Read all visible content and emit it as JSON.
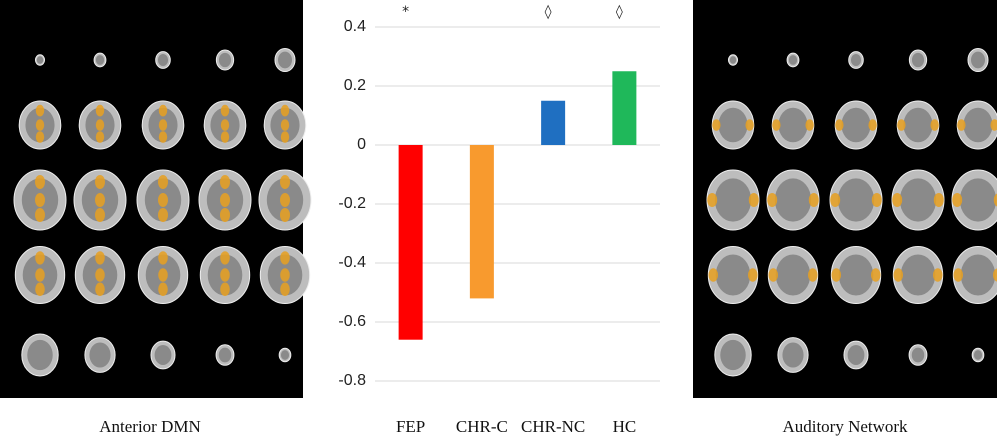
{
  "chart_data": {
    "type": "bar",
    "categories": [
      "FEP",
      "CHR-C",
      "CHR-NC",
      "HC"
    ],
    "values": [
      -0.66,
      -0.52,
      0.15,
      0.25
    ],
    "colors": [
      "#ff0000",
      "#f89a2e",
      "#1f6fc1",
      "#1fb85a"
    ],
    "annotations": [
      "*",
      null,
      "◊",
      "◊"
    ],
    "ylim": [
      -0.8,
      0.4
    ],
    "yticks": [
      -0.8,
      -0.6,
      -0.4,
      -0.2,
      0,
      0.2,
      0.4
    ],
    "grid": true
  },
  "panels": [
    {
      "label": "Anterior DMN"
    },
    {
      "label": "Auditory Network"
    }
  ]
}
